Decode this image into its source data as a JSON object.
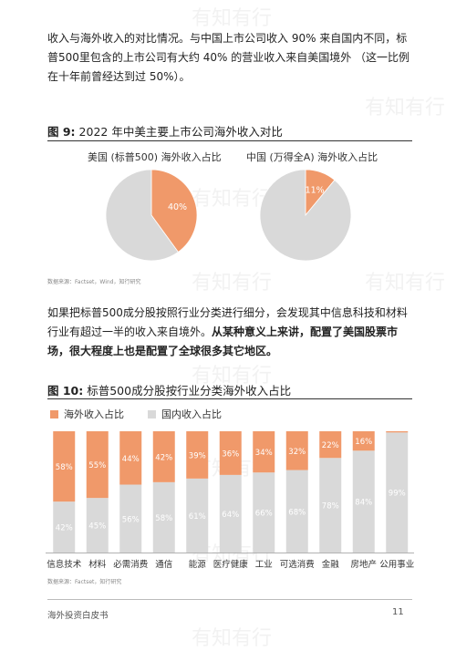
{
  "intro": {
    "text": "收入与海外收入的对比情况。与中国上市公司收入 90% 来自国内不同，标普500里包含的上市公司有大约 40% 的营业收入来自美国境外 （这一比例在十年前曾经达到过 50%）。"
  },
  "figure9": {
    "number": "图 9:",
    "title": "2022 年中美主要上市公司海外收入对比",
    "source": "数据来源：Factset，Wind，知行研究"
  },
  "mid": {
    "plain": "如果把标普500成分股按照行业分类进行细分，会发现其中信息科技和材料行业有超过一半的收入来自境外。",
    "bold": "从某种意义上来讲，配置了美国股票市场，很大程度上也是配置了全球很多其它地区。"
  },
  "figure10": {
    "number": "图 10:",
    "title": "标普500成分股按行业分类海外收入占比",
    "source": "数据来源：Factset，知行研究"
  },
  "footer": {
    "left": "海外投资白皮书",
    "page": "11"
  },
  "watermark": "有知有行",
  "colors": {
    "overseas": "#f0996a",
    "domestic": "#d9d9d9"
  },
  "chart_data": [
    {
      "type": "pie",
      "title": "美国 (标普500) 海外收入占比",
      "labels": [
        "海外收入",
        "国内收入"
      ],
      "values": [
        40,
        60
      ],
      "value_labels": [
        "40%",
        ""
      ]
    },
    {
      "type": "pie",
      "title": "中国 (万得全A) 海外收入占比",
      "labels": [
        "海外收入",
        "国内收入"
      ],
      "values": [
        11,
        89
      ],
      "value_labels": [
        "11%",
        ""
      ]
    },
    {
      "type": "bar",
      "stacked": true,
      "categories": [
        "信息技术",
        "材料",
        "必需消费",
        "通信",
        "能源",
        "医疗健康",
        "工业",
        "可选消费",
        "金融",
        "房地产",
        "公用事业"
      ],
      "series": [
        {
          "name": "海外收入占比",
          "values": [
            58,
            55,
            44,
            42,
            39,
            36,
            34,
            32,
            22,
            16,
            1
          ],
          "labels": [
            "58%",
            "55%",
            "44%",
            "42%",
            "39%",
            "36%",
            "34%",
            "32%",
            "22%",
            "16%",
            ""
          ]
        },
        {
          "name": "国内收入占比",
          "values": [
            42,
            45,
            56,
            58,
            61,
            64,
            66,
            68,
            78,
            84,
            99
          ],
          "labels": [
            "42%",
            "45%",
            "56%",
            "58%",
            "61%",
            "64%",
            "66%",
            "68%",
            "78%",
            "84%",
            "99%"
          ]
        }
      ],
      "ylim": [
        0,
        100
      ]
    }
  ]
}
